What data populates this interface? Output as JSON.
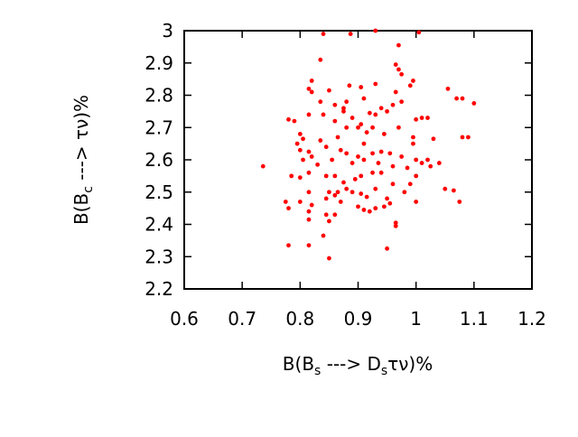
{
  "chart_data": {
    "type": "scatter",
    "xlabel": [
      "B(B",
      "s",
      " ---> D",
      "s",
      "τν)%"
    ],
    "ylabel": [
      "B(B",
      "c",
      " ---> τν)%"
    ],
    "xlim": [
      0.6,
      1.2
    ],
    "ylim": [
      2.2,
      3
    ],
    "xticks": [
      0.6,
      0.7,
      0.8,
      0.9,
      1,
      1.1,
      1.2
    ],
    "yticks": [
      2.2,
      2.3,
      2.4,
      2.5,
      2.6,
      2.7,
      2.8,
      2.9,
      3
    ],
    "color": "#ff0000",
    "x": [
      0.736,
      0.84,
      0.887,
      0.93,
      1.005,
      0.835,
      0.97,
      0.965,
      0.97,
      0.975,
      0.82,
      0.815,
      0.82,
      0.85,
      0.885,
      0.905,
      0.93,
      0.995,
      0.99,
      1.055,
      1.07,
      1.08,
      1.1,
      0.835,
      0.86,
      0.875,
      0.88,
      0.91,
      0.94,
      0.96,
      0.965,
      0.975,
      0.78,
      0.79,
      0.815,
      0.84,
      0.86,
      0.875,
      0.89,
      0.905,
      0.92,
      0.93,
      0.95,
      1.0,
      1.01,
      1.02,
      0.8,
      0.805,
      0.835,
      0.865,
      0.88,
      0.9,
      0.915,
      0.925,
      0.945,
      0.97,
      0.995,
      1.03,
      1.08,
      1.09,
      0.795,
      0.8,
      0.815,
      0.82,
      0.845,
      0.87,
      0.88,
      0.9,
      0.91,
      0.925,
      0.94,
      0.955,
      0.975,
      0.995,
      1.02,
      1.025,
      1.04,
      0.805,
      0.83,
      0.855,
      0.89,
      0.91,
      0.935,
      0.96,
      0.985,
      1.0,
      1.01,
      0.785,
      0.8,
      0.815,
      0.845,
      0.86,
      0.875,
      0.895,
      0.905,
      0.925,
      0.94,
      0.96,
      0.99,
      1.0,
      0.815,
      0.85,
      0.86,
      0.865,
      0.88,
      0.89,
      0.905,
      0.915,
      0.93,
      0.95,
      0.98,
      1.05,
      1.065,
      0.775,
      0.8,
      0.82,
      0.845,
      0.87,
      0.9,
      0.91,
      0.92,
      0.945,
      0.955,
      1.0,
      1.075,
      0.78,
      0.815,
      0.845,
      0.86,
      0.93,
      0.815,
      0.85,
      0.965,
      0.965,
      0.84,
      0.815,
      0.78,
      0.95,
      0.85
    ],
    "y": [
      2.58,
      2.99,
      2.99,
      3.0,
      2.995,
      2.91,
      2.955,
      2.895,
      2.88,
      2.865,
      2.845,
      2.82,
      2.81,
      2.815,
      2.83,
      2.825,
      2.835,
      2.845,
      2.83,
      2.82,
      2.79,
      2.79,
      2.775,
      2.78,
      2.77,
      2.76,
      2.78,
      2.79,
      2.76,
      2.77,
      2.81,
      2.78,
      2.725,
      2.72,
      2.74,
      2.74,
      2.72,
      2.75,
      2.73,
      2.71,
      2.745,
      2.74,
      2.75,
      2.725,
      2.73,
      2.73,
      2.68,
      2.665,
      2.66,
      2.67,
      2.7,
      2.7,
      2.685,
      2.7,
      2.68,
      2.7,
      2.67,
      2.665,
      2.67,
      2.67,
      2.65,
      2.63,
      2.625,
      2.61,
      2.64,
      2.63,
      2.62,
      2.61,
      2.65,
      2.62,
      2.625,
      2.62,
      2.61,
      2.65,
      2.6,
      2.58,
      2.59,
      2.6,
      2.585,
      2.6,
      2.59,
      2.6,
      2.59,
      2.58,
      2.575,
      2.6,
      2.59,
      2.55,
      2.545,
      2.56,
      2.55,
      2.55,
      2.53,
      2.54,
      2.55,
      2.56,
      2.56,
      2.525,
      2.525,
      2.55,
      2.5,
      2.5,
      2.49,
      2.5,
      2.51,
      2.5,
      2.495,
      2.485,
      2.51,
      2.48,
      2.5,
      2.51,
      2.505,
      2.47,
      2.47,
      2.46,
      2.48,
      2.47,
      2.455,
      2.445,
      2.44,
      2.455,
      2.465,
      2.47,
      2.47,
      2.45,
      2.44,
      2.43,
      2.43,
      2.45,
      2.415,
      2.41,
      2.405,
      2.395,
      2.365,
      2.335,
      2.335,
      2.325,
      2.295
    ]
  }
}
